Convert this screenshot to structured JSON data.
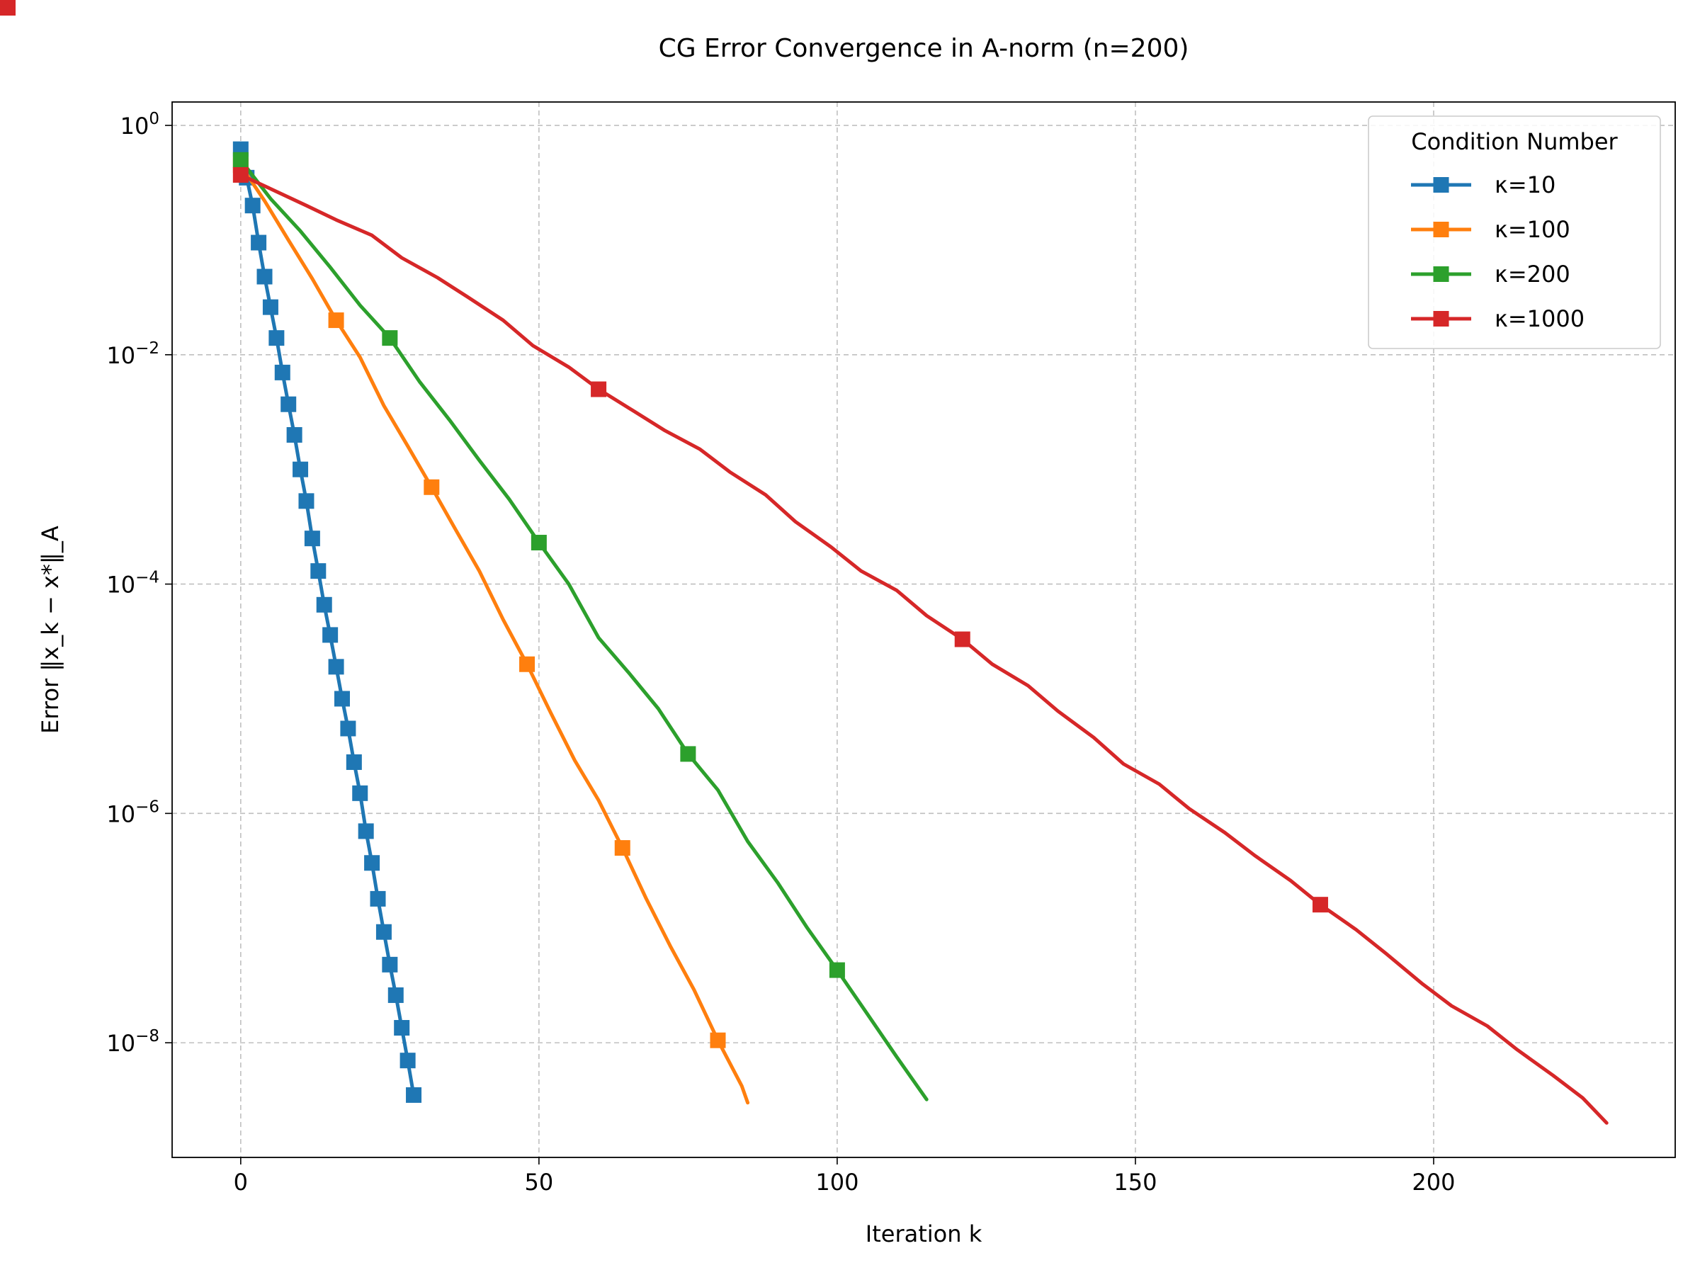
{
  "chart_data": {
    "type": "line",
    "title": "CG Error Convergence in A-norm (n=200)",
    "xlabel": "Iteration k",
    "ylabel": "Error ‖x_k − x*‖_A",
    "yscale": "log",
    "xlim": [
      -11.5,
      240.5
    ],
    "ylim": [
      1e-09,
      1.6
    ],
    "xticks": [
      0,
      50,
      100,
      150,
      200
    ],
    "xtick_labels": [
      "0",
      "50",
      "100",
      "150",
      "200"
    ],
    "yticks": [
      1,
      0.01,
      0.0001,
      1e-06,
      1e-08
    ],
    "ytick_labels": [
      {
        "base": "10",
        "exp": "0"
      },
      {
        "base": "10",
        "exp": "−2"
      },
      {
        "base": "10",
        "exp": "−4"
      },
      {
        "base": "10",
        "exp": "−6"
      },
      {
        "base": "10",
        "exp": "−8"
      }
    ],
    "grid": true,
    "legend": {
      "title": "Condition Number",
      "position": "top-right"
    },
    "series": [
      {
        "name": "κ=10",
        "color": "#1f77b4",
        "x": [
          0,
          1,
          2,
          3,
          4,
          5,
          6,
          7,
          8,
          9,
          10,
          11,
          12,
          13,
          14,
          15,
          16,
          17,
          18,
          19,
          20,
          21,
          22,
          23,
          24,
          25,
          26,
          27,
          28,
          29
        ],
        "y": [
          0.62,
          0.35,
          0.2,
          0.095,
          0.048,
          0.026,
          0.014,
          0.007,
          0.0037,
          0.002,
          0.001,
          0.00053,
          0.00025,
          0.00013,
          6.6e-05,
          3.6e-05,
          1.9e-05,
          1e-05,
          5.5e-06,
          2.8e-06,
          1.5e-06,
          7e-07,
          3.7e-07,
          1.8e-07,
          9.25e-08,
          4.8e-08,
          2.6e-08,
          1.35e-08,
          7e-09,
          3.5e-09
        ],
        "markers": [
          0,
          1,
          2,
          3,
          4,
          5,
          6,
          7,
          8,
          9,
          10,
          11,
          12,
          13,
          14,
          15,
          16,
          17,
          18,
          19,
          20,
          21,
          22,
          23,
          24,
          25,
          26,
          27,
          28,
          29
        ]
      },
      {
        "name": "κ=100",
        "color": "#ff7f0e",
        "x": [
          0,
          4,
          8,
          12,
          16,
          20,
          24,
          28,
          32,
          36,
          40,
          44,
          48,
          52,
          56,
          60,
          64,
          68,
          72,
          76,
          80,
          84,
          85
        ],
        "y": [
          0.45,
          0.22,
          0.1,
          0.046,
          0.02,
          0.0095,
          0.0036,
          0.0016,
          0.0007,
          0.0003,
          0.00013,
          4.9e-05,
          2e-05,
          7.5e-06,
          2.9e-06,
          1.3e-06,
          5e-07,
          1.8e-07,
          7e-08,
          2.9e-08,
          1.05e-08,
          4.2e-09,
          3e-09
        ],
        "markers": [
          0,
          4,
          8,
          12,
          16,
          20,
          24,
          28,
          32,
          36,
          40,
          44,
          48,
          52,
          56,
          60,
          64,
          68,
          72,
          76,
          80,
          84
        ]
      },
      {
        "name": "κ=200",
        "color": "#2ca02c",
        "x": [
          0,
          5,
          10,
          15,
          20,
          25,
          30,
          35,
          40,
          45,
          50,
          55,
          60,
          65,
          70,
          75,
          80,
          85,
          90,
          95,
          100,
          105,
          110,
          115
        ],
        "y": [
          0.5,
          0.23,
          0.12,
          0.058,
          0.027,
          0.014,
          0.0058,
          0.0027,
          0.0012,
          0.00055,
          0.00023,
          0.0001,
          3.4e-05,
          1.7e-05,
          8.2e-06,
          3.3e-06,
          1.6e-06,
          5.7e-07,
          2.5e-07,
          1e-07,
          4.3e-08,
          1.8e-08,
          7.5e-09,
          3.2e-09
        ],
        "markers": [
          0,
          5,
          10,
          15,
          20,
          25,
          30,
          35,
          40,
          45,
          50,
          55,
          60,
          65,
          70,
          75,
          80,
          85,
          90,
          95,
          100,
          105,
          110,
          115
        ]
      },
      {
        "name": "κ=1000",
        "color": "#d62728",
        "x": [
          0,
          5,
          11,
          16,
          22,
          27,
          33,
          38,
          44,
          49,
          55,
          60,
          66,
          71,
          77,
          82,
          88,
          93,
          99,
          104,
          110,
          115,
          121,
          126,
          132,
          137,
          143,
          148,
          154,
          159,
          165,
          170,
          176,
          181,
          187,
          192,
          198,
          203,
          209,
          214,
          220,
          225,
          229
        ],
        "y": [
          0.37,
          0.28,
          0.2,
          0.15,
          0.11,
          0.07,
          0.047,
          0.032,
          0.02,
          0.012,
          0.0078,
          0.005,
          0.0032,
          0.0022,
          0.0015,
          0.00095,
          0.0006,
          0.00035,
          0.00021,
          0.00013,
          8.8e-05,
          5.3e-05,
          3.3e-05,
          2e-05,
          1.3e-05,
          7.8e-06,
          4.6e-06,
          2.7e-06,
          1.8e-06,
          1.1e-06,
          6.8e-07,
          4.3e-07,
          2.6e-07,
          1.6e-07,
          9.7e-08,
          6e-08,
          3.3e-08,
          2.1e-08,
          1.4e-08,
          8.7e-09,
          5.2e-09,
          3.3e-09,
          2e-09
        ],
        "markers": [
          0,
          11,
          22,
          33,
          44,
          55,
          66,
          77,
          88,
          99,
          110,
          121,
          132,
          143,
          154,
          165,
          176,
          187,
          198,
          209,
          220
        ]
      }
    ]
  }
}
